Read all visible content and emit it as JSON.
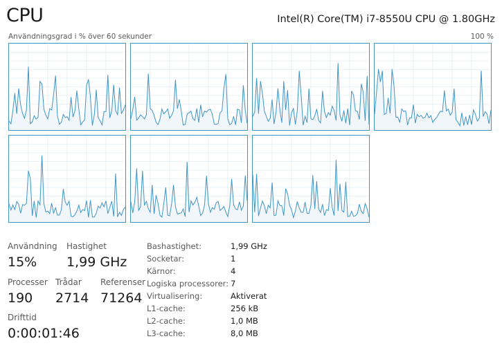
{
  "header": {
    "title": "CPU",
    "model": "Intel(R) Core(TM) i7-8550U CPU @ 1.80GHz"
  },
  "graphs": {
    "caption": "Användningsgrad i % över 60 sekunder",
    "max_label": "100 %",
    "line_color": "#3f95c4",
    "fill_color": "#f1f6fa",
    "logical_processor_count": 7
  },
  "stats": {
    "usage_label": "Användning",
    "usage_value": "15%",
    "speed_label": "Hastighet",
    "speed_value": "1,99 GHz",
    "processes_label": "Processer",
    "processes_value": "190",
    "threads_label": "Trådar",
    "threads_value": "2714",
    "handles_label": "Referenser",
    "handles_value": "71264",
    "uptime_label": "Drifttid",
    "uptime_value": "0:00:01:46"
  },
  "details": [
    {
      "label": "Bashastighet:",
      "value": "1,99 GHz"
    },
    {
      "label": "Socketar:",
      "value": "1"
    },
    {
      "label": "Kärnor:",
      "value": "4"
    },
    {
      "label": "Logiska processorer:",
      "value": "7"
    },
    {
      "label": "Virtualisering:",
      "value": "Aktiverat"
    },
    {
      "label": "L1-cache:",
      "value": "256 kB"
    },
    {
      "label": "L2-cache:",
      "value": "1,0 MB"
    },
    {
      "label": "L3-cache:",
      "value": "8,0 MB"
    }
  ]
}
